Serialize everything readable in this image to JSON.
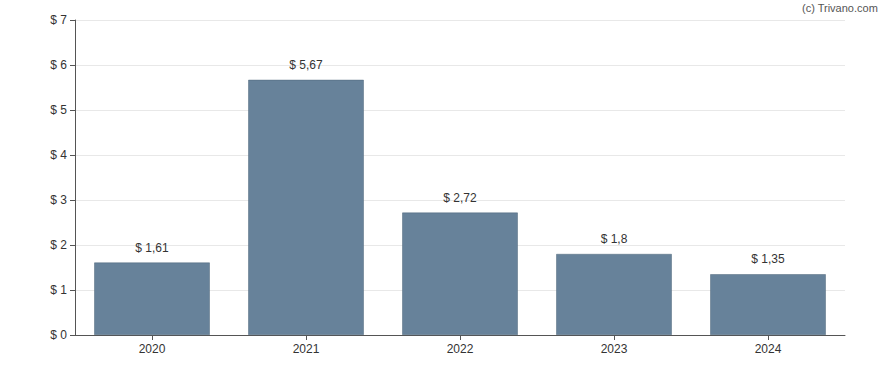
{
  "chart_data": {
    "type": "bar",
    "annotation": "(c) Trivano.com",
    "categories": [
      "2020",
      "2021",
      "2022",
      "2023",
      "2024"
    ],
    "values": [
      1.61,
      5.67,
      2.72,
      1.8,
      1.35
    ],
    "value_labels": [
      "$ 1,61",
      "$ 5,67",
      "$ 2,72",
      "$ 1,8",
      "$ 1,35"
    ],
    "data_labels": true,
    "color": "#67829a",
    "ylim": [
      0,
      7
    ],
    "yticks": [
      {
        "value": 0,
        "label": "$ 0"
      },
      {
        "value": 1,
        "label": "$ 1"
      },
      {
        "value": 2,
        "label": "$ 2"
      },
      {
        "value": 3,
        "label": "$ 3"
      },
      {
        "value": 4,
        "label": "$ 4"
      },
      {
        "value": 5,
        "label": "$ 5"
      },
      {
        "value": 6,
        "label": "$ 6"
      },
      {
        "value": 7,
        "label": "$ 7"
      }
    ],
    "grid": true
  }
}
